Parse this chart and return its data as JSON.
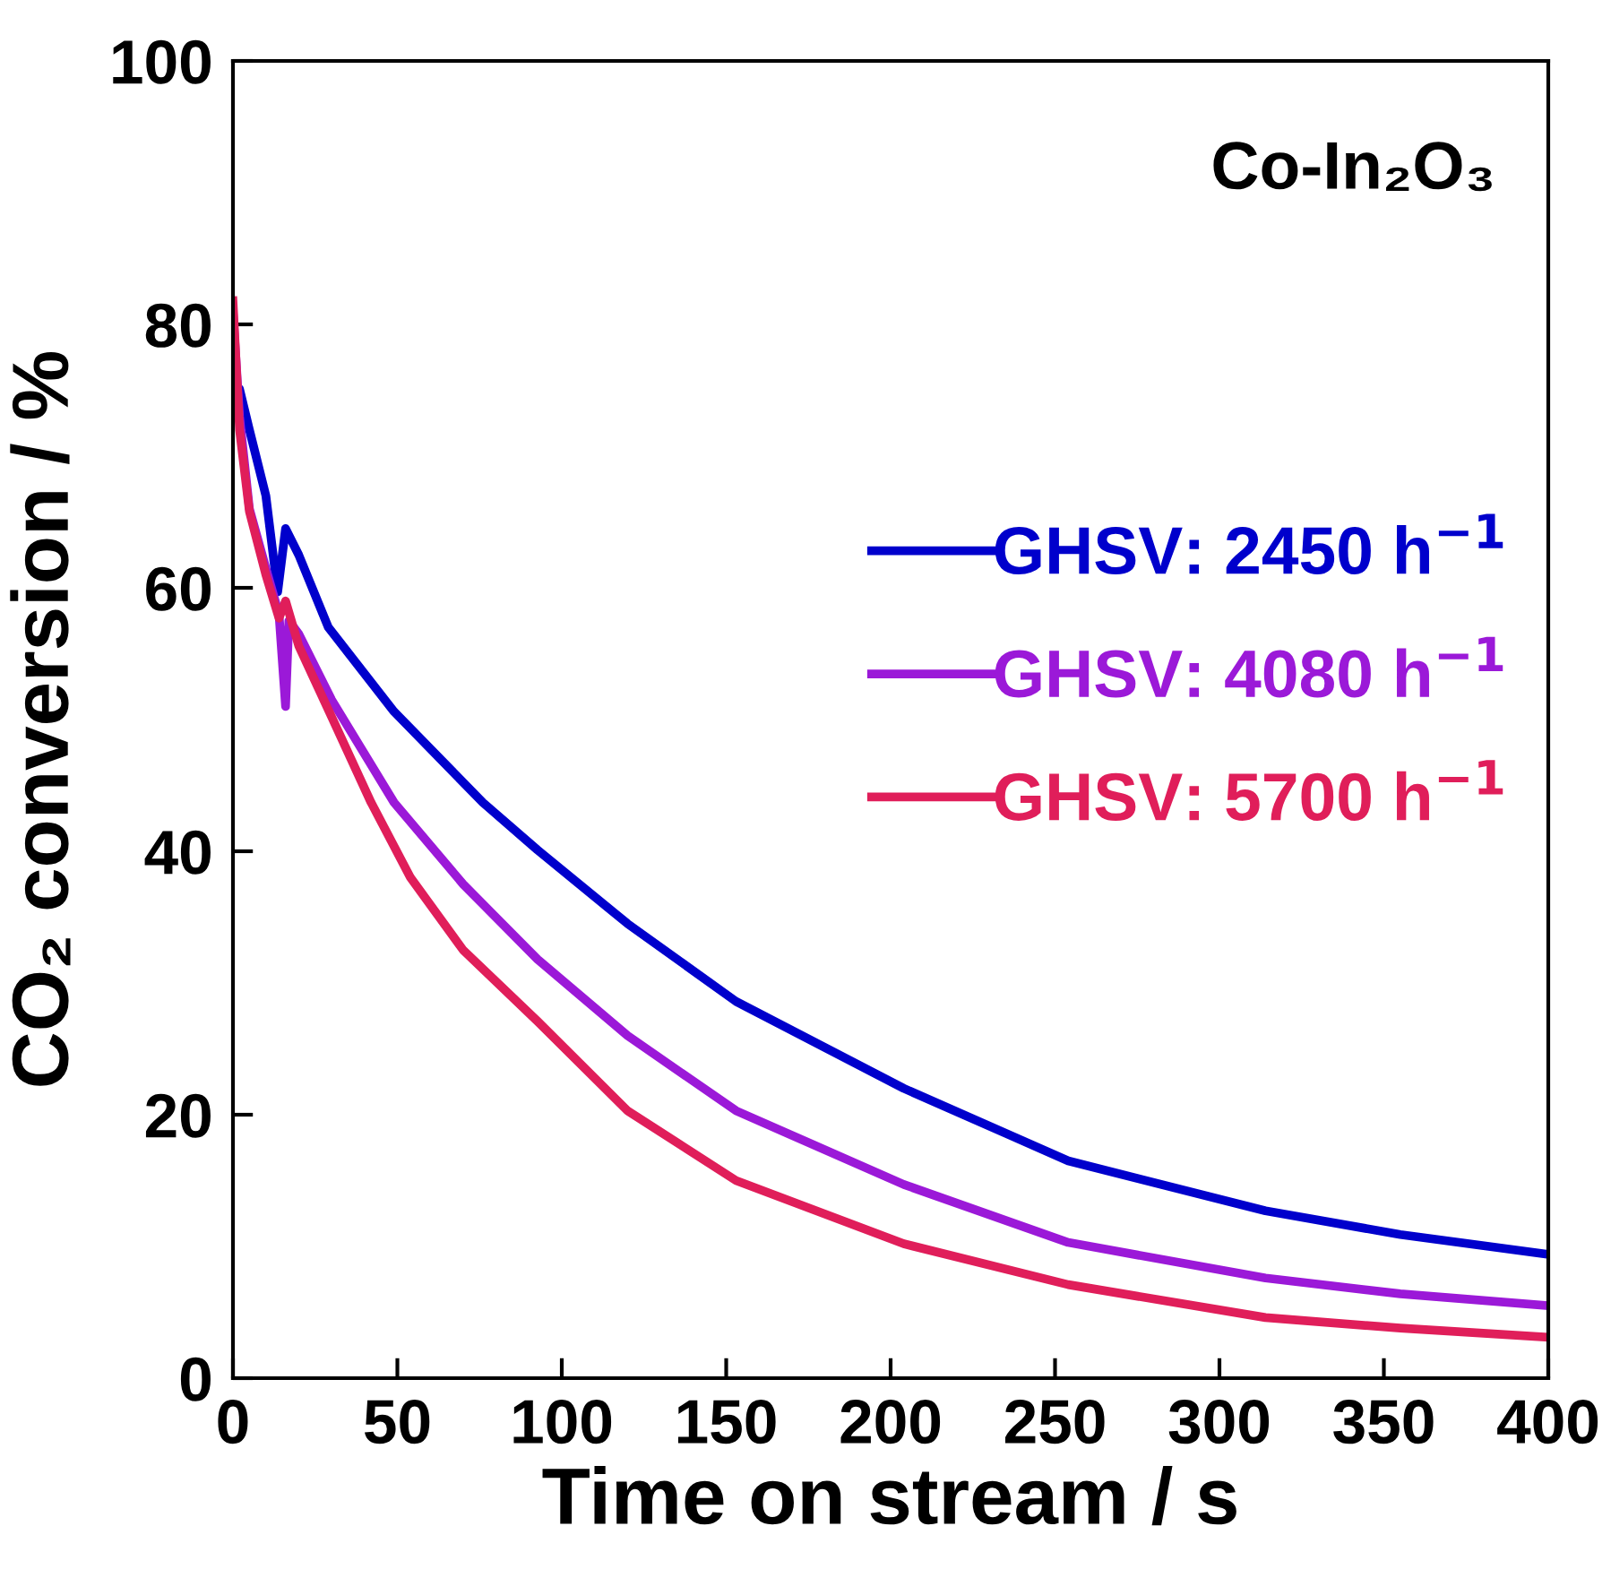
{
  "chart_data": {
    "type": "line",
    "xlabel": "Time on stream / s",
    "ylabel": "CO₂ conversion / %",
    "annotations": [
      "Co-In₂O₃"
    ],
    "xlim": [
      0,
      400
    ],
    "ylim": [
      0,
      100
    ],
    "xticks": [
      0,
      50,
      100,
      150,
      200,
      250,
      300,
      350,
      400
    ],
    "yticks": [
      0,
      20,
      40,
      60,
      80,
      100
    ],
    "grid": false,
    "legend": "right",
    "marker": "none",
    "line_style": "solid",
    "series": [
      {
        "name": "GHSV: 2450 h$^{−1}$",
        "color": "#0000cc",
        "x": [
          0,
          2,
          5,
          10,
          13.6,
          16,
          20,
          29,
          49,
          76,
          92.6,
          120,
          153,
          204,
          254,
          314,
          355,
          400
        ],
        "values": [
          74.4,
          75.1,
          72,
          67,
          59.7,
          64.5,
          62.5,
          57,
          50.6,
          43.7,
          40.1,
          34.5,
          28.6,
          22,
          16.5,
          12.7,
          10.9,
          9.4
        ]
      },
      {
        "name": "GHSV: 4080 h$^{−1}$",
        "color": "#9b19d8",
        "x": [
          0,
          2,
          5,
          10,
          14,
          16,
          17,
          20,
          30,
          49,
          70,
          92.6,
          120,
          153,
          204,
          254,
          314,
          355,
          400
        ],
        "values": [
          81,
          73,
          66,
          61.5,
          58,
          51,
          57.5,
          56.5,
          51.5,
          43.7,
          37.5,
          31.8,
          26,
          20.3,
          14.7,
          10.3,
          7.6,
          6.4,
          5.5
        ]
      },
      {
        "name": "GHSV: 5700 h$^{−1}$",
        "color": "#e01e5a",
        "x": [
          0,
          2,
          5,
          10,
          14,
          16,
          20,
          30,
          42,
          54,
          70,
          92.6,
          120,
          153,
          204,
          254,
          314,
          355,
          400
        ],
        "values": [
          81.8,
          72,
          65.8,
          61,
          57.7,
          59,
          55.6,
          50.2,
          43.7,
          38,
          32.5,
          27.1,
          20.3,
          15,
          10.2,
          7.1,
          4.6,
          3.8,
          3.1
        ]
      }
    ]
  }
}
